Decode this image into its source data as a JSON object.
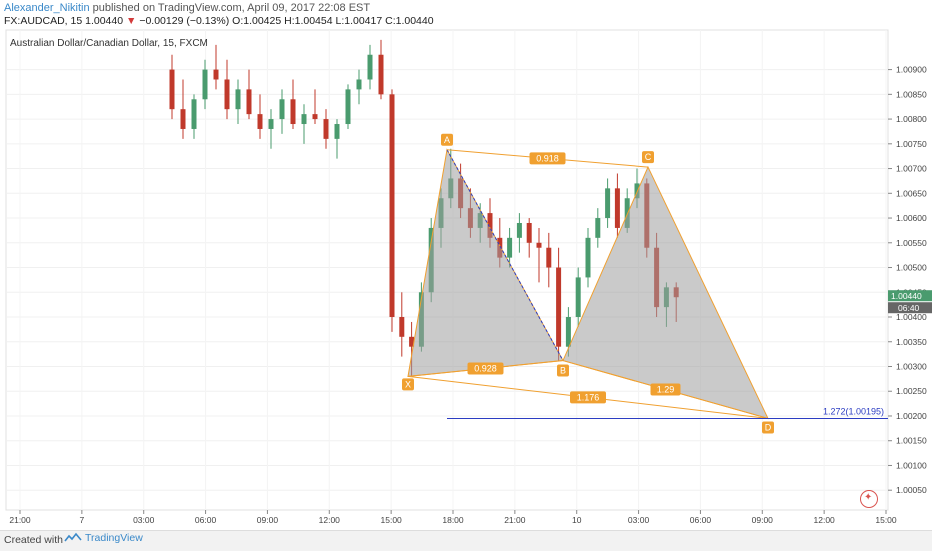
{
  "header": {
    "author": "Alexander_Nikitin",
    "published": "published on TradingView.com, April 09, 2017 22:08 EST",
    "symbol_line": "FX:AUDCAD, 15",
    "last": "1.00440",
    "change_arrow": "▼",
    "change": "−0.00129 (−0.13%)",
    "ohlc": "O:1.00425 H:1.00454 L:1.00417 C:1.00440"
  },
  "chart_data": {
    "type": "candlestick",
    "title": "Australian Dollar/Canadian Dollar, 15, FXCM",
    "ylim": [
      1.0001,
      1.0098
    ],
    "y_ticks": [
      "1.00050",
      "1.00100",
      "1.00150",
      "1.00200",
      "1.00250",
      "1.00300",
      "1.00350",
      "1.00400",
      "1.00450",
      "1.00500",
      "1.00550",
      "1.00600",
      "1.00650",
      "1.00700",
      "1.00750",
      "1.00800",
      "1.00850",
      "1.00900"
    ],
    "x_ticks": [
      "21:00",
      "7",
      "03:00",
      "06:00",
      "09:00",
      "12:00",
      "15:00",
      "18:00",
      "21:00",
      "10",
      "03:00",
      "06:00",
      "09:00",
      "12:00",
      "15:00"
    ],
    "price_label": "1.00440",
    "time_label": "06:40",
    "candles": [
      [
        1.009,
        1.0093,
        1.008,
        1.0082
      ],
      [
        1.0082,
        1.0088,
        1.0076,
        1.0078
      ],
      [
        1.0078,
        1.0085,
        1.0076,
        1.0084
      ],
      [
        1.0084,
        1.0092,
        1.0082,
        1.009
      ],
      [
        1.009,
        1.0095,
        1.0086,
        1.0088
      ],
      [
        1.0088,
        1.0092,
        1.008,
        1.0082
      ],
      [
        1.0082,
        1.0088,
        1.0079,
        1.0086
      ],
      [
        1.0086,
        1.009,
        1.008,
        1.0081
      ],
      [
        1.0081,
        1.0085,
        1.0076,
        1.0078
      ],
      [
        1.0078,
        1.0082,
        1.0074,
        1.008
      ],
      [
        1.008,
        1.0086,
        1.0077,
        1.0084
      ],
      [
        1.0084,
        1.0088,
        1.0078,
        1.0079
      ],
      [
        1.0079,
        1.0083,
        1.0075,
        1.0081
      ],
      [
        1.0081,
        1.0086,
        1.0079,
        1.008
      ],
      [
        1.008,
        1.0082,
        1.0074,
        1.0076
      ],
      [
        1.0076,
        1.008,
        1.0072,
        1.0079
      ],
      [
        1.0079,
        1.0087,
        1.0078,
        1.0086
      ],
      [
        1.0086,
        1.009,
        1.0083,
        1.0088
      ],
      [
        1.0088,
        1.0095,
        1.0086,
        1.0093
      ],
      [
        1.0093,
        1.0096,
        1.0084,
        1.0085
      ],
      [
        1.0085,
        1.0086,
        1.0037,
        1.004
      ],
      [
        1.004,
        1.0045,
        1.0032,
        1.0036
      ],
      [
        1.0036,
        1.0039,
        1.0028,
        1.0034
      ],
      [
        1.0034,
        1.0047,
        1.0033,
        1.0045
      ],
      [
        1.0045,
        1.006,
        1.0043,
        1.0058
      ],
      [
        1.0058,
        1.0066,
        1.0054,
        1.0064
      ],
      [
        1.0064,
        1.0074,
        1.0062,
        1.0068
      ],
      [
        1.0068,
        1.0071,
        1.006,
        1.0062
      ],
      [
        1.0062,
        1.0066,
        1.0056,
        1.0058
      ],
      [
        1.0058,
        1.0063,
        1.0055,
        1.0061
      ],
      [
        1.0061,
        1.0064,
        1.0054,
        1.0056
      ],
      [
        1.0056,
        1.006,
        1.005,
        1.0052
      ],
      [
        1.0052,
        1.0058,
        1.005,
        1.0056
      ],
      [
        1.0056,
        1.0061,
        1.0053,
        1.0059
      ],
      [
        1.0059,
        1.006,
        1.0052,
        1.0055
      ],
      [
        1.0055,
        1.0058,
        1.0047,
        1.0054
      ],
      [
        1.0054,
        1.0057,
        1.0046,
        1.005
      ],
      [
        1.005,
        1.0054,
        1.0031,
        1.0034
      ],
      [
        1.0034,
        1.0042,
        1.0032,
        1.004
      ],
      [
        1.004,
        1.005,
        1.0038,
        1.0048
      ],
      [
        1.0048,
        1.0058,
        1.0046,
        1.0056
      ],
      [
        1.0056,
        1.0062,
        1.0054,
        1.006
      ],
      [
        1.006,
        1.0068,
        1.0058,
        1.0066
      ],
      [
        1.0066,
        1.0069,
        1.0056,
        1.0058
      ],
      [
        1.0058,
        1.0066,
        1.0057,
        1.0064
      ],
      [
        1.0064,
        1.007,
        1.0062,
        1.0067
      ],
      [
        1.0067,
        1.0068,
        1.0052,
        1.0054
      ],
      [
        1.0054,
        1.0057,
        1.004,
        1.0042
      ],
      [
        1.0042,
        1.0047,
        1.0038,
        1.0046
      ],
      [
        1.0046,
        1.0047,
        1.0039,
        1.0044
      ]
    ],
    "pattern": {
      "points": [
        {
          "label": "X",
          "value": 1.0028
        },
        {
          "label": "A",
          "value": 1.00738
        },
        {
          "label": "B",
          "value": 1.00312
        },
        {
          "label": "C",
          "value": 1.00703
        },
        {
          "label": "D",
          "value": 1.00195
        }
      ],
      "ratios": [
        {
          "label": "0.918",
          "between": "A-C"
        },
        {
          "label": "0.928",
          "between": "X-B"
        },
        {
          "label": "1.176",
          "between": "X-D"
        },
        {
          "label": "1.29",
          "between": "B-D"
        }
      ],
      "fib_level_label": "1.272(1.00195)",
      "fib_value": 1.00195
    },
    "colors": {
      "up": "#4a9b6e",
      "down": "#c0392b",
      "pattern_line": "#f0a030",
      "pattern_fill": "#9e9e9e",
      "fib_line": "#2b3cc2",
      "price_tag": "#4a9b6e"
    }
  },
  "footer": {
    "created_with": "Created with",
    "brand": "TradingView"
  },
  "flag_icon": "canada-flag-icon"
}
